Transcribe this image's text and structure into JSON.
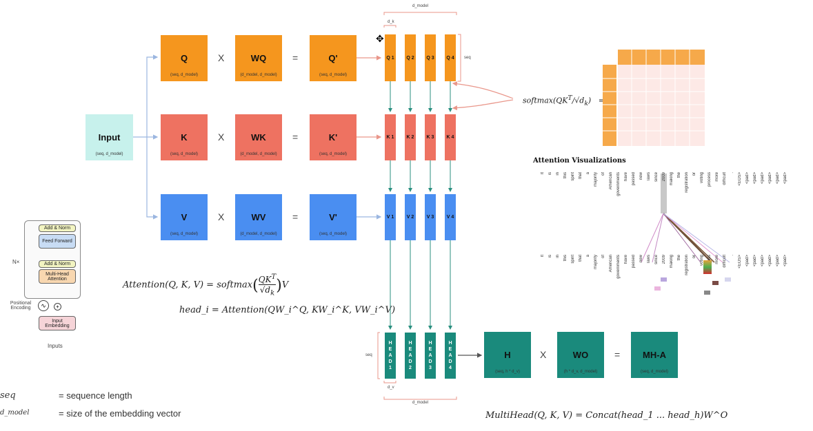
{
  "projections": {
    "input": {
      "label": "Input",
      "sub": "(seq, d_model)"
    },
    "rows": [
      {
        "name": "q",
        "in": "Q",
        "w": "WQ",
        "w_sup": "Q",
        "out": "Q'",
        "in_sub": "(seq, d_model)",
        "w_sub": "(d_model, d_model)",
        "out_sub": "(seq, d_model)",
        "color": "#f5961e"
      },
      {
        "name": "k",
        "in": "K",
        "w": "WK",
        "w_sup": "K",
        "out": "K'",
        "in_sub": "(seq, d_model)",
        "w_sub": "(d_model, d_model)",
        "out_sub": "(seq, d_model)",
        "color": "#ee7261"
      },
      {
        "name": "v",
        "in": "V",
        "w": "WV",
        "w_sup": "V",
        "out": "V'",
        "in_sub": "(seq, d_model)",
        "w_sub": "(d_model, d_model)",
        "out_sub": "(seq, d_model)",
        "color": "#4a8ef1"
      }
    ],
    "times": "X",
    "equals": "="
  },
  "heads": {
    "q_labels": [
      "Q 1",
      "Q 2",
      "Q 3",
      "Q 4"
    ],
    "k_labels": [
      "K 1",
      "K 2",
      "K 3",
      "K 4"
    ],
    "v_labels": [
      "V 1",
      "V 2",
      "V 3",
      "V 4"
    ],
    "head_labels": [
      "HEAD1",
      "HEAD2",
      "HEAD3",
      "HEAD4"
    ],
    "dmodel_top": "d_model",
    "dk_top": "d_k",
    "seq_right": "seq",
    "seq_left": "seq",
    "dv_bottom": "d_v",
    "dmodel_bottom": "d_model"
  },
  "concat_row": {
    "h": {
      "label": "H",
      "sub": "(seq, h * d_v)"
    },
    "wo": {
      "label": "WO",
      "sup": "O",
      "sub": "(h * d_v, d_model)"
    },
    "mha": {
      "label": "MH-A",
      "sub": "(seq, d_model)"
    }
  },
  "formulas": {
    "softmax": "softmax",
    "attention": "Attention(Q, K, V) = softmax",
    "head": "head_i = Attention(QW_i^Q, KW_i^K, VW_i^V)",
    "multihead": "MultiHead(Q, K, V) = Concat(head_1 ... head_h)W^O"
  },
  "attention_viz": {
    "title": "Attention Visualizations",
    "words": [
      "It",
      "is",
      "in",
      "this",
      "spirit",
      "that",
      "a",
      "majority",
      "of",
      "American",
      "governments",
      "have",
      "passed",
      "new",
      "laws",
      "since",
      "2009",
      "making",
      "the",
      "registration",
      "or",
      "voting",
      "process",
      "more",
      "difficult",
      ".",
      "<EOS>",
      "<pad>",
      "<pad>",
      "<pad>",
      "<pad>",
      "<pad>",
      "<pad>"
    ]
  },
  "transformer_block": {
    "nx": "N×",
    "add_norm": "Add & Norm",
    "feed_forward": "Feed Forward",
    "mha": "Multi-Head Attention",
    "positional": "Positional Encoding",
    "embedding": "Input Embedding",
    "inputs": "Inputs"
  },
  "legend": {
    "seq_sym": "seq",
    "seq_def": "= sequence length",
    "dmodel_sym": "d_model",
    "dmodel_def": "= size of the embedding vector"
  }
}
